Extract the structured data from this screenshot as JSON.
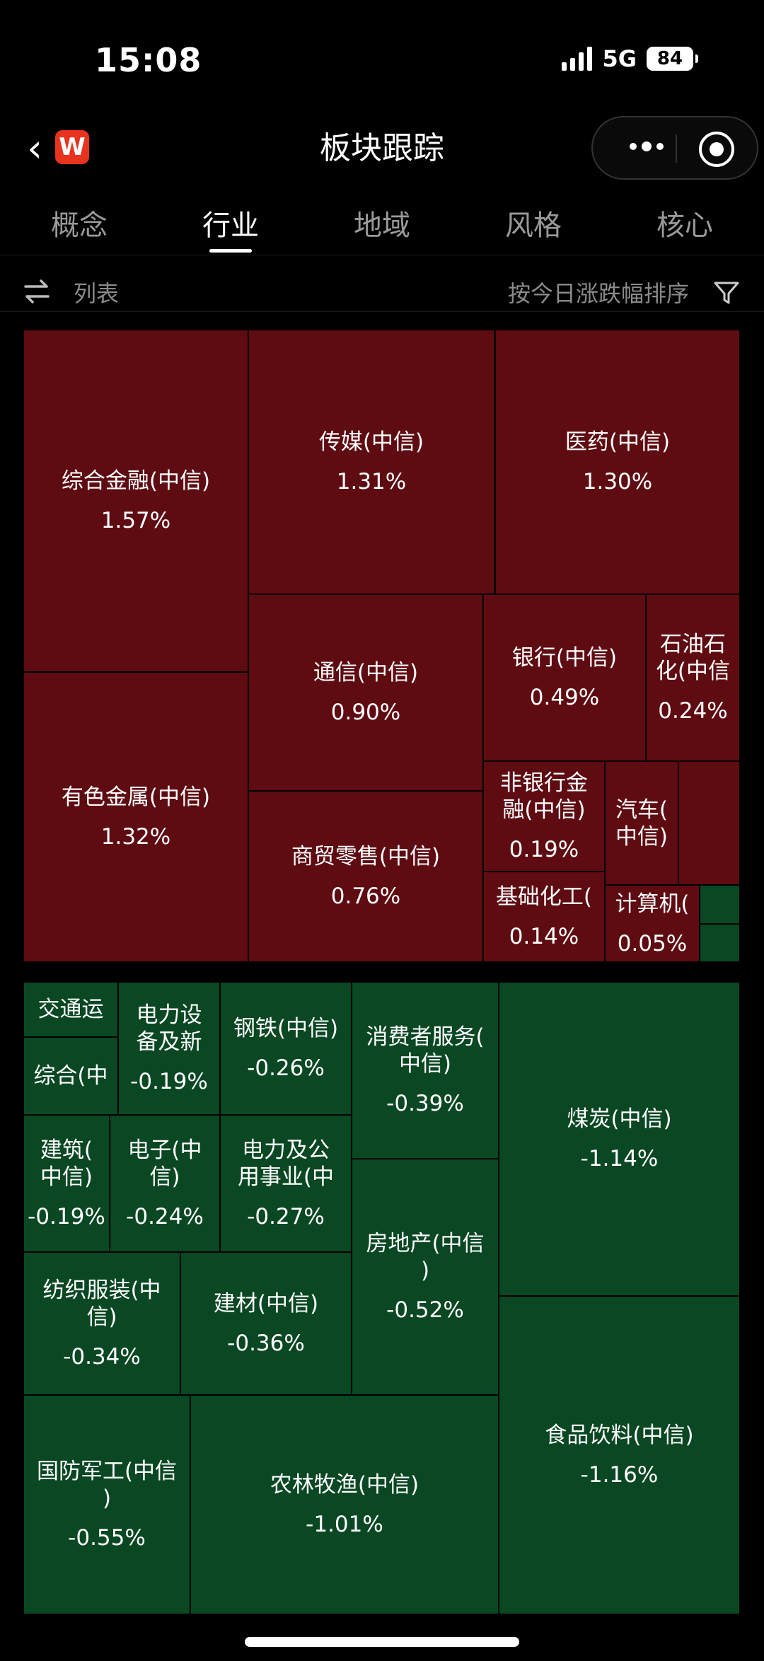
{
  "status_bar": {
    "time": "15:08",
    "network": "5G",
    "battery": "84"
  },
  "nav": {
    "title": "板块跟踪",
    "logo_letter": "W"
  },
  "tabs": [
    {
      "label": "概念",
      "active": false
    },
    {
      "label": "行业",
      "active": true
    },
    {
      "label": "地域",
      "active": false
    },
    {
      "label": "风格",
      "active": false
    },
    {
      "label": "核心",
      "active": false
    }
  ],
  "toolbar": {
    "view_label": "列表",
    "sort_label": "按今日涨跌幅排序"
  },
  "colors": {
    "up": "#5e0b12",
    "down": "#0a4723"
  },
  "tiles": [
    {
      "name": "综合金融(中信)",
      "change": "1.57%",
      "dir": "up"
    },
    {
      "name": "传媒(中信)",
      "change": "1.31%",
      "dir": "up"
    },
    {
      "name": "医药(中信)",
      "change": "1.30%",
      "dir": "up"
    },
    {
      "name": "有色金属(中信)",
      "change": "1.32%",
      "dir": "up"
    },
    {
      "name": "通信(中信)",
      "change": "0.90%",
      "dir": "up"
    },
    {
      "name": "银行(中信)",
      "change": "0.49%",
      "dir": "up"
    },
    {
      "name": "石油石\n化(中信",
      "change": "0.24%",
      "dir": "up"
    },
    {
      "name": "商贸零售(中信)",
      "change": "0.76%",
      "dir": "up"
    },
    {
      "name": "非银行金\n融(中信)",
      "change": "0.19%",
      "dir": "up"
    },
    {
      "name": "汽车(\n中信)",
      "change": "",
      "dir": "up"
    },
    {
      "name": "",
      "change": "",
      "dir": "up"
    },
    {
      "name": "基础化工(",
      "change": "0.14%",
      "dir": "up"
    },
    {
      "name": "计算机(",
      "change": "0.05%",
      "dir": "up"
    },
    {
      "name": "",
      "change": "",
      "dir": "down"
    },
    {
      "name": "",
      "change": "",
      "dir": "down"
    },
    {
      "name": "交通运",
      "change": "",
      "dir": "down"
    },
    {
      "name": "电力设\n备及新",
      "change": "-0.19%",
      "dir": "down"
    },
    {
      "name": "钢铁(中信)",
      "change": "-0.26%",
      "dir": "down"
    },
    {
      "name": "消费者服务(\n中信)",
      "change": "-0.39%",
      "dir": "down"
    },
    {
      "name": "煤炭(中信)",
      "change": "-1.14%",
      "dir": "down"
    },
    {
      "name": "综合(中",
      "change": "",
      "dir": "down"
    },
    {
      "name": "建筑(\n中信)",
      "change": "-0.19%",
      "dir": "down"
    },
    {
      "name": "电子(中\n信)",
      "change": "-0.24%",
      "dir": "down"
    },
    {
      "name": "电力及公\n用事业(中",
      "change": "-0.27%",
      "dir": "down"
    },
    {
      "name": "房地产(中信\n)",
      "change": "-0.52%",
      "dir": "down"
    },
    {
      "name": "纺织服装(中\n信)",
      "change": "-0.34%",
      "dir": "down"
    },
    {
      "name": "建材(中信)",
      "change": "-0.36%",
      "dir": "down"
    },
    {
      "name": "食品饮料(中信)",
      "change": "-1.16%",
      "dir": "down"
    },
    {
      "name": "国防军工(中信\n)",
      "change": "-0.55%",
      "dir": "down"
    },
    {
      "name": "农林牧渔(中信)",
      "change": "-1.01%",
      "dir": "down"
    }
  ]
}
